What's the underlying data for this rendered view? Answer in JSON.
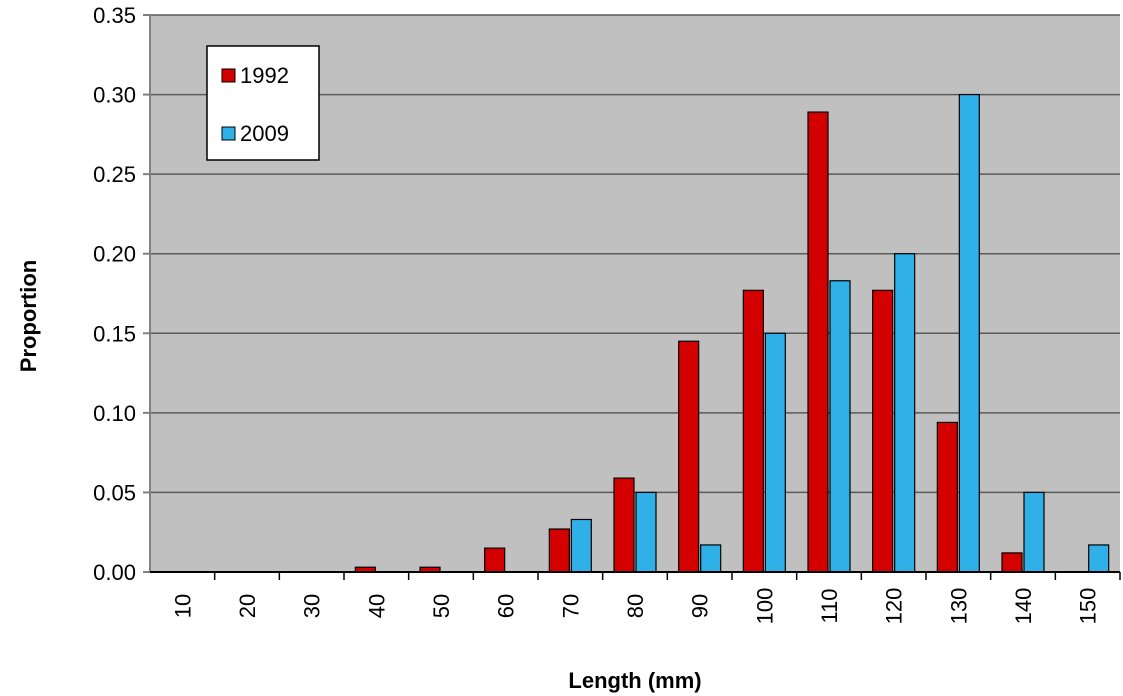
{
  "chart_data": {
    "type": "bar",
    "title": "",
    "xlabel": "Length (mm)",
    "ylabel": "Proportion",
    "ylim": [
      0,
      0.35
    ],
    "yticks": [
      "0.00",
      "0.05",
      "0.10",
      "0.15",
      "0.20",
      "0.25",
      "0.30",
      "0.35"
    ],
    "ytick_values": [
      0,
      0.05,
      0.1,
      0.15,
      0.2,
      0.25,
      0.3,
      0.35
    ],
    "categories": [
      "10",
      "20",
      "30",
      "40",
      "50",
      "60",
      "70",
      "80",
      "90",
      "100",
      "110",
      "120",
      "130",
      "140",
      "150"
    ],
    "series": [
      {
        "name": "1992",
        "color": "#d40000",
        "values": [
          0,
          0,
          0,
          0.003,
          0.003,
          0.015,
          0.027,
          0.059,
          0.145,
          0.177,
          0.289,
          0.177,
          0.094,
          0.012,
          0
        ]
      },
      {
        "name": "2009",
        "color": "#2fb0e8",
        "values": [
          0,
          0,
          0,
          0,
          0,
          0,
          0.033,
          0.05,
          0.017,
          0.15,
          0.183,
          0.2,
          0.3,
          0.05,
          0.017
        ]
      }
    ],
    "grid": true,
    "legend_position": "top-left",
    "plot_background": "#c0c0c0"
  }
}
